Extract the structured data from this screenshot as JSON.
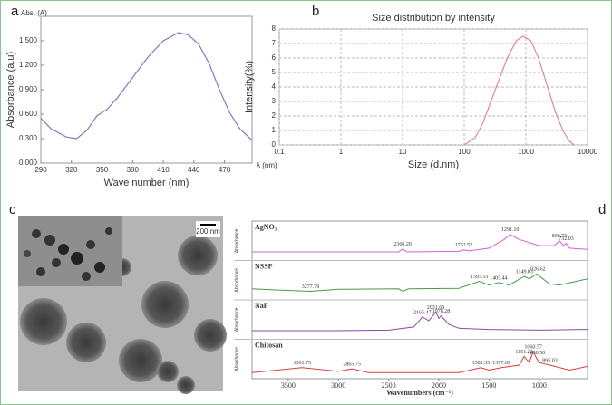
{
  "chart_data": [
    {
      "panel": "a",
      "type": "line",
      "y_unit_label": "Abs. (A)",
      "x_unit_label": "λ (nm)",
      "xlabel": "Wave number (nm)",
      "ylabel": "Absorbance (a.u)",
      "x": [
        290,
        300,
        315,
        325,
        335,
        345,
        355,
        365,
        380,
        395,
        410,
        425,
        435,
        445,
        455,
        465,
        475,
        485,
        497
      ],
      "values": [
        0.55,
        0.42,
        0.32,
        0.3,
        0.4,
        0.58,
        0.66,
        0.8,
        1.05,
        1.3,
        1.5,
        1.6,
        1.57,
        1.45,
        1.22,
        0.9,
        0.62,
        0.42,
        0.28
      ],
      "color": "#7b7bc0",
      "xlim": [
        290,
        497
      ],
      "xticks": [
        290,
        320,
        350,
        380,
        410,
        440,
        470
      ],
      "ylim": [
        0,
        1.8
      ],
      "yticks": [
        {
          "value": 0,
          "label": "0.000"
        },
        {
          "value": 0.3,
          "label": "0.300"
        },
        {
          "value": 0.6,
          "label": "0.600"
        },
        {
          "value": 0.9,
          "label": "0.900"
        },
        {
          "value": 1.2,
          "label": "1.200"
        },
        {
          "value": 1.5,
          "label": "1.500"
        }
      ]
    },
    {
      "panel": "b",
      "type": "line",
      "title": "Size distribution by intensity",
      "xlabel": "Size (d.nm)",
      "ylabel": "Intensity(%)",
      "log_x": true,
      "x": [
        100,
        150,
        200,
        300,
        500,
        700,
        900,
        1200,
        1600,
        2000,
        3000,
        4000,
        5000,
        6000
      ],
      "values": [
        0,
        0.5,
        1.5,
        3.5,
        6,
        7.2,
        7.5,
        7.2,
        6,
        4.7,
        2.3,
        1,
        0.3,
        0
      ],
      "color": "#e08a8a",
      "xlim": [
        0.1,
        10000
      ],
      "xticks": [
        0.1,
        1,
        10,
        100,
        1000,
        10000
      ],
      "ylim": [
        0,
        8
      ],
      "yticks": [
        0,
        1,
        2,
        3,
        4,
        5,
        6,
        7,
        8
      ],
      "grid": true
    },
    {
      "panel": "d",
      "type": "spectra",
      "xlabel": "Wavenumbers (cm⁻¹)",
      "ylabel": "Absorbance",
      "xlim": [
        3860,
        520
      ],
      "xticks": [
        3500,
        3000,
        2500,
        2000,
        1500,
        1000
      ],
      "ylim": [
        0,
        1
      ],
      "series": [
        {
          "name": "AgNO₃",
          "color": "#d45fd4",
          "x": [
            3860,
            3000,
            2400,
            2360,
            2320,
            1800,
            1752,
            1700,
            1500,
            1350,
            1291,
            1200,
            1000,
            850,
            800,
            760,
            732,
            700,
            520
          ],
          "values": [
            0.2,
            0.2,
            0.2,
            0.32,
            0.2,
            0.22,
            0.28,
            0.24,
            0.35,
            0.7,
            0.9,
            0.7,
            0.45,
            0.45,
            0.65,
            0.45,
            0.55,
            0.35,
            0.3
          ],
          "peaks": [
            {
              "value": 2360.2,
              "label": "2360.20"
            },
            {
              "value": 1752.52,
              "label": "1752.52"
            },
            {
              "value": 1291.1,
              "label": "1291.10"
            },
            {
              "value": 800.73,
              "label": "800.73"
            },
            {
              "value": 732.03,
              "label": "732.03"
            }
          ]
        },
        {
          "name": "NSSF",
          "color": "#4a9a4a",
          "x": [
            3860,
            3600,
            3278,
            3000,
            2400,
            2360,
            2300,
            1800,
            1597,
            1500,
            1405,
            1300,
            1149,
            1100,
            1026,
            900,
            800,
            520
          ],
          "values": [
            0.3,
            0.25,
            0.2,
            0.28,
            0.3,
            0.2,
            0.3,
            0.32,
            0.6,
            0.45,
            0.55,
            0.45,
            0.8,
            0.7,
            0.9,
            0.5,
            0.45,
            0.7
          ],
          "peaks": [
            {
              "value": 3277.79,
              "label": "3277.79"
            },
            {
              "value": 1597.53,
              "label": "1597.53"
            },
            {
              "value": 1405.44,
              "label": "1405.44"
            },
            {
              "value": 1149.03,
              "label": "1149.03"
            },
            {
              "value": 1026.62,
              "label": "1026.62"
            }
          ]
        },
        {
          "name": "NaF",
          "color": "#8a4a9a",
          "x": [
            3860,
            3000,
            2500,
            2250,
            2165,
            2100,
            2031,
            2000,
            1978,
            1900,
            1800,
            1500,
            1000,
            520
          ],
          "values": [
            0.2,
            0.2,
            0.22,
            0.35,
            0.75,
            0.6,
            0.95,
            0.7,
            0.8,
            0.45,
            0.3,
            0.25,
            0.22,
            0.25
          ],
          "peaks": [
            {
              "value": 2165.47,
              "label": "2165.47"
            },
            {
              "value": 2031.69,
              "label": "2031.69"
            },
            {
              "value": 1978.28,
              "label": "1978.28"
            }
          ]
        },
        {
          "name": "Chitosan",
          "color": "#d04040",
          "x": [
            3860,
            3362,
            3000,
            2866,
            2700,
            1800,
            1581,
            1500,
            1378,
            1200,
            1151,
            1100,
            1061,
            1031,
            1000,
            895,
            700,
            520
          ],
          "values": [
            0.1,
            0.3,
            0.15,
            0.25,
            0.1,
            0.1,
            0.3,
            0.2,
            0.3,
            0.4,
            0.75,
            0.5,
            0.95,
            0.7,
            0.5,
            0.4,
            0.2,
            0.35
          ],
          "peaks": [
            {
              "value": 3361.75,
              "label": "3361.75"
            },
            {
              "value": 2865.75,
              "label": "2865.75"
            },
            {
              "value": 1581.35,
              "label": "1581.35"
            },
            {
              "value": 1377.69,
              "label": "1377.69"
            },
            {
              "value": 1151.22,
              "label": "1151.22"
            },
            {
              "value": 1060.57,
              "label": "1060.57"
            },
            {
              "value": 1030.5,
              "label": "1030.50"
            },
            {
              "value": 895.03,
              "label": "895.03"
            }
          ]
        }
      ]
    }
  ],
  "image": {
    "panel": "c",
    "scale_bar": "200 nm"
  }
}
